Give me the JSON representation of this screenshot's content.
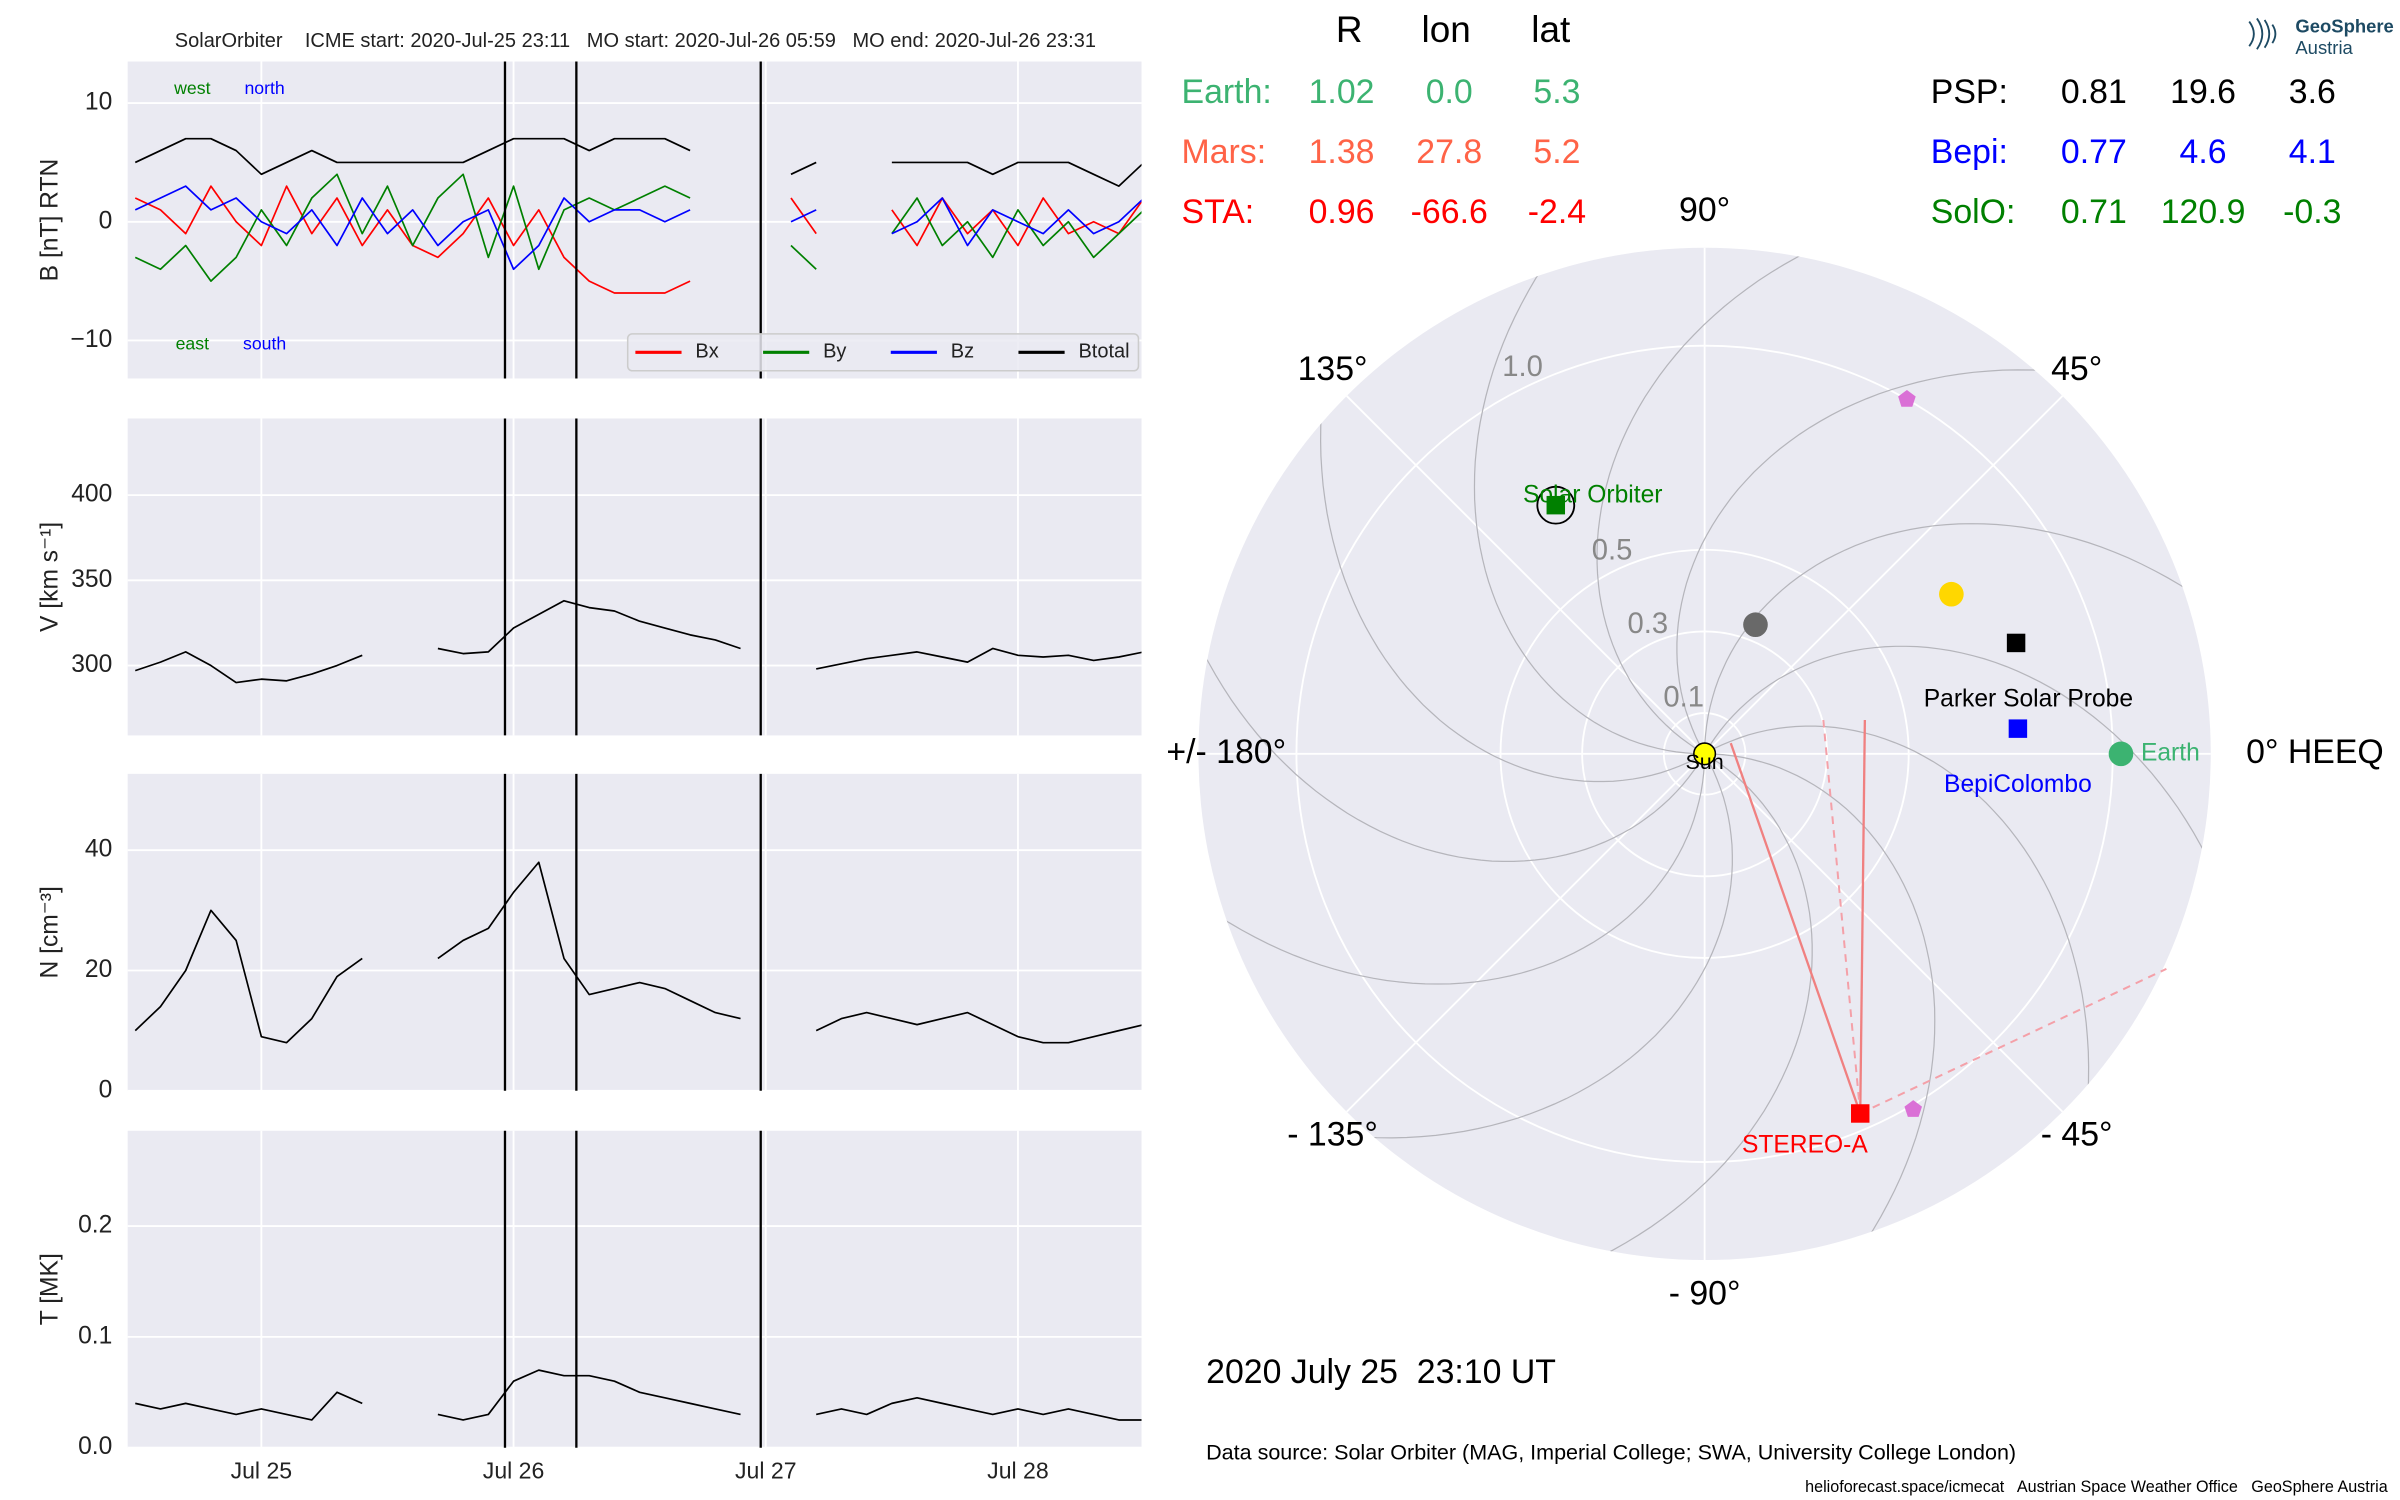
{
  "chart_data": [
    {
      "type": "line",
      "title": "SolarOrbiter    ICME start: 2020-Jul-25 23:11   MO start: 2020-Jul-26 05:59   MO end: 2020-Jul-26 23:31",
      "ylabel": "B [nT] RTN",
      "x": [
        24.5,
        24.6,
        24.7,
        24.8,
        24.9,
        25.0,
        25.1,
        25.2,
        25.3,
        25.4,
        25.5,
        25.6,
        25.7,
        25.8,
        25.9,
        26.0,
        26.1,
        26.2,
        26.3,
        26.4,
        26.5,
        26.6,
        26.7,
        26.8,
        26.9,
        27.0,
        27.1,
        27.2,
        27.3,
        27.4,
        27.5,
        27.6,
        27.7,
        27.8,
        27.9,
        28.0,
        28.1,
        28.2,
        28.3,
        28.4,
        28.5
      ],
      "xlim": [
        24.47,
        28.49
      ],
      "xticks": [
        25,
        26,
        27,
        28
      ],
      "ylim": [
        -13.2,
        13.5
      ],
      "yticks": [
        {
          "value": -10,
          "label": "−10"
        },
        0,
        10
      ],
      "grid": true,
      "legend": "lower right",
      "vlines": [
        25.966,
        26.249,
        26.98
      ],
      "annotations": [
        {
          "text": "west",
          "color": "green"
        },
        {
          "text": "north",
          "color": "blue"
        },
        {
          "text": "east",
          "color": "green"
        },
        {
          "text": "south",
          "color": "blue"
        }
      ],
      "series": [
        {
          "name": "Bx",
          "color": "red",
          "values": [
            2,
            1,
            -1,
            3,
            0,
            -2,
            3,
            -1,
            2,
            -2,
            1,
            -2,
            -3,
            -1,
            2,
            -2,
            1,
            -3,
            -5,
            -6,
            -6,
            -6,
            -5,
            null,
            null,
            null,
            2,
            -1,
            null,
            null,
            1,
            -2,
            2,
            -1,
            1,
            -2,
            2,
            -1,
            0,
            -1,
            2
          ]
        },
        {
          "name": "By",
          "color": "green",
          "values": [
            -3,
            -4,
            -2,
            -5,
            -3,
            1,
            -2,
            2,
            4,
            -1,
            3,
            -2,
            2,
            4,
            -3,
            3,
            -4,
            1,
            2,
            1,
            2,
            3,
            2,
            null,
            null,
            null,
            -2,
            -4,
            null,
            null,
            -1,
            2,
            -2,
            0,
            -3,
            1,
            -2,
            0,
            -3,
            -1,
            1
          ]
        },
        {
          "name": "Bz",
          "color": "blue",
          "values": [
            1,
            2,
            3,
            1,
            2,
            0,
            -1,
            1,
            -2,
            2,
            -1,
            1,
            -2,
            0,
            1,
            -4,
            -2,
            2,
            0,
            1,
            1,
            0,
            1,
            null,
            null,
            null,
            0,
            1,
            null,
            null,
            -1,
            0,
            2,
            -2,
            1,
            0,
            -1,
            1,
            -1,
            0,
            2
          ]
        },
        {
          "name": "Btotal",
          "color": "black",
          "values": [
            5,
            6,
            7,
            7,
            6,
            4,
            5,
            6,
            5,
            5,
            5,
            5,
            5,
            5,
            6,
            7,
            7,
            7,
            6,
            7,
            7,
            7,
            6,
            null,
            null,
            null,
            4,
            5,
            null,
            null,
            5,
            5,
            5,
            5,
            4,
            5,
            5,
            5,
            4,
            3,
            5
          ]
        }
      ]
    },
    {
      "type": "line",
      "ylabel": "V [km s⁻¹]",
      "x": [
        24.5,
        24.6,
        24.7,
        24.8,
        24.9,
        25.0,
        25.1,
        25.2,
        25.3,
        25.4,
        25.5,
        25.6,
        25.7,
        25.8,
        25.9,
        26.0,
        26.1,
        26.2,
        26.3,
        26.4,
        26.5,
        26.6,
        26.7,
        26.8,
        26.9,
        27.0,
        27.1,
        27.2,
        27.3,
        27.4,
        27.5,
        27.6,
        27.7,
        27.8,
        27.9,
        28.0,
        28.1,
        28.2,
        28.3,
        28.4,
        28.5
      ],
      "xlim": [
        24.47,
        28.49
      ],
      "xticks": [
        25,
        26,
        27,
        28
      ],
      "ylim": [
        259,
        445
      ],
      "yticks": [
        300,
        350,
        400
      ],
      "grid": true,
      "color": "black",
      "vlines": [
        25.966,
        26.249,
        26.98
      ],
      "values": [
        297,
        302,
        308,
        300,
        290,
        292,
        291,
        295,
        300,
        306,
        null,
        null,
        310,
        307,
        308,
        322,
        330,
        338,
        334,
        332,
        326,
        322,
        318,
        315,
        310,
        null,
        null,
        298,
        301,
        304,
        306,
        308,
        305,
        302,
        310,
        306,
        305,
        306,
        303,
        305,
        308
      ]
    },
    {
      "type": "line",
      "ylabel": "N [cm⁻³]",
      "x": [
        24.5,
        24.6,
        24.7,
        24.8,
        24.9,
        25.0,
        25.1,
        25.2,
        25.3,
        25.4,
        25.5,
        25.6,
        25.7,
        25.8,
        25.9,
        26.0,
        26.1,
        26.2,
        26.3,
        26.4,
        26.5,
        26.6,
        26.7,
        26.8,
        26.9,
        27.0,
        27.1,
        27.2,
        27.3,
        27.4,
        27.5,
        27.6,
        27.7,
        27.8,
        27.9,
        28.0,
        28.1,
        28.2,
        28.3,
        28.4,
        28.5
      ],
      "xlim": [
        24.47,
        28.49
      ],
      "xticks": [
        25,
        26,
        27,
        28
      ],
      "ylim": [
        0,
        52.7
      ],
      "yticks": [
        0,
        20,
        40
      ],
      "grid": true,
      "color": "black",
      "vlines": [
        25.966,
        26.249,
        26.98
      ],
      "values": [
        10,
        14,
        20,
        30,
        25,
        9,
        8,
        12,
        19,
        22,
        null,
        null,
        22,
        25,
        27,
        33,
        38,
        22,
        16,
        17,
        18,
        17,
        15,
        13,
        12,
        null,
        null,
        10,
        12,
        13,
        12,
        11,
        12,
        13,
        11,
        9,
        8,
        8,
        9,
        10,
        11
      ]
    },
    {
      "type": "line",
      "ylabel": "T [MK]",
      "x": [
        24.5,
        24.6,
        24.7,
        24.8,
        24.9,
        25.0,
        25.1,
        25.2,
        25.3,
        25.4,
        25.5,
        25.6,
        25.7,
        25.8,
        25.9,
        26.0,
        26.1,
        26.2,
        26.3,
        26.4,
        26.5,
        26.6,
        26.7,
        26.8,
        26.9,
        27.0,
        27.1,
        27.2,
        27.3,
        27.4,
        27.5,
        27.6,
        27.7,
        27.8,
        27.9,
        28.0,
        28.1,
        28.2,
        28.3,
        28.4,
        28.5
      ],
      "xlim": [
        24.47,
        28.49
      ],
      "xticks": [
        {
          "value": 25,
          "label": "Jul 25"
        },
        {
          "value": 26,
          "label": "Jul 26"
        },
        {
          "value": 27,
          "label": "Jul 27"
        },
        {
          "value": 28,
          "label": "Jul 28"
        }
      ],
      "ylim": [
        0,
        0.286
      ],
      "yticks": [
        {
          "value": 0,
          "label": "0.0"
        },
        0.1,
        0.2
      ],
      "grid": true,
      "color": "black",
      "vlines": [
        25.966,
        26.249,
        26.98
      ],
      "values": [
        0.04,
        0.035,
        0.04,
        0.035,
        0.03,
        0.035,
        0.03,
        0.025,
        0.05,
        0.04,
        null,
        null,
        0.03,
        0.025,
        0.03,
        0.06,
        0.07,
        0.065,
        0.065,
        0.06,
        0.05,
        0.045,
        0.04,
        0.035,
        0.03,
        null,
        null,
        0.03,
        0.035,
        0.03,
        0.04,
        0.045,
        0.04,
        0.035,
        0.03,
        0.035,
        0.03,
        0.035,
        0.03,
        0.025,
        0.025
      ]
    },
    {
      "type": "polar",
      "rlim": [
        0,
        1.24
      ],
      "rticks": [
        0.1,
        0.3,
        0.5,
        {
          "value": 1,
          "label": "1.0"
        }
      ],
      "thetaticks": [
        {
          "value": 0,
          "label": "0° HEEQ"
        },
        {
          "value": 45,
          "label": "45°"
        },
        {
          "value": 90,
          "label": "90°"
        },
        {
          "value": 135,
          "label": "135°"
        },
        {
          "value": 180,
          "label": "+/- 180°"
        },
        {
          "value": -135,
          "label": "- 135°"
        },
        {
          "value": -90,
          "label": "- 90°"
        },
        {
          "value": -45,
          "label": "- 45°"
        }
      ],
      "bodies": [
        {
          "name": "Solar Orbiter",
          "r": 0.71,
          "lon": 120.9,
          "color": "green",
          "marker": "square"
        },
        {
          "name": "Parker Solar Probe",
          "r": 0.81,
          "lon": 19.6,
          "color": "black",
          "marker": "square"
        },
        {
          "name": "BepiColombo",
          "r": 0.77,
          "lon": 4.6,
          "color": "blue",
          "marker": "square"
        },
        {
          "name": "Earth",
          "r": 1.02,
          "lon": 0.0,
          "color": "mediumseagreen",
          "marker": "circle"
        },
        {
          "name": "STEREO-A",
          "r": 0.96,
          "lon": -66.6,
          "color": "red",
          "marker": "square"
        },
        {
          "name": "Sun",
          "r": 0,
          "lon": 0,
          "color": "yellow",
          "marker": "circle"
        },
        {
          "r": 0.72,
          "lon": 32.9,
          "color": "gold",
          "marker": "circle"
        },
        {
          "r": 0.34,
          "lon": 68.5,
          "color": "dimgrey",
          "marker": "circle"
        },
        {
          "r": 1.0,
          "lon": 60.3,
          "color": "orchid",
          "marker": "pentagon"
        },
        {
          "r": 1.01,
          "lon": -59.6,
          "color": "orchid",
          "marker": "pentagon"
        }
      ]
    }
  ],
  "positions_table": {
    "columns": [
      "R",
      "lon",
      "lat"
    ],
    "rows": [
      {
        "label": "Earth:",
        "color": "mediumseagreen",
        "values": [
          "1.02",
          "0.0",
          "5.3"
        ]
      },
      {
        "label": "Mars:",
        "color": "tomato",
        "values": [
          "1.38",
          "27.8",
          "5.2"
        ]
      },
      {
        "label": "STA:",
        "color": "red",
        "values": [
          "0.96",
          "-66.6",
          "-2.4"
        ]
      },
      {
        "label": "PSP:",
        "color": "black",
        "values": [
          "0.81",
          "19.6",
          "3.6"
        ]
      },
      {
        "label": "Bepi:",
        "color": "blue",
        "values": [
          "0.77",
          "4.6",
          "4.1"
        ]
      },
      {
        "label": "SolO:",
        "color": "green",
        "values": [
          "0.71",
          "120.9",
          "-0.3"
        ]
      }
    ]
  },
  "timestamp": "2020 July 25  23:10 UT",
  "data_source": "Data source: Solar Orbiter (MAG, Imperial College; SWA, University College London)",
  "footer": "helioforecast.space/icmecat   Austrian Space Weather Office   GeoSphere Austria",
  "logo": {
    "line1": "GeoSphere",
    "line2": "Austria"
  }
}
